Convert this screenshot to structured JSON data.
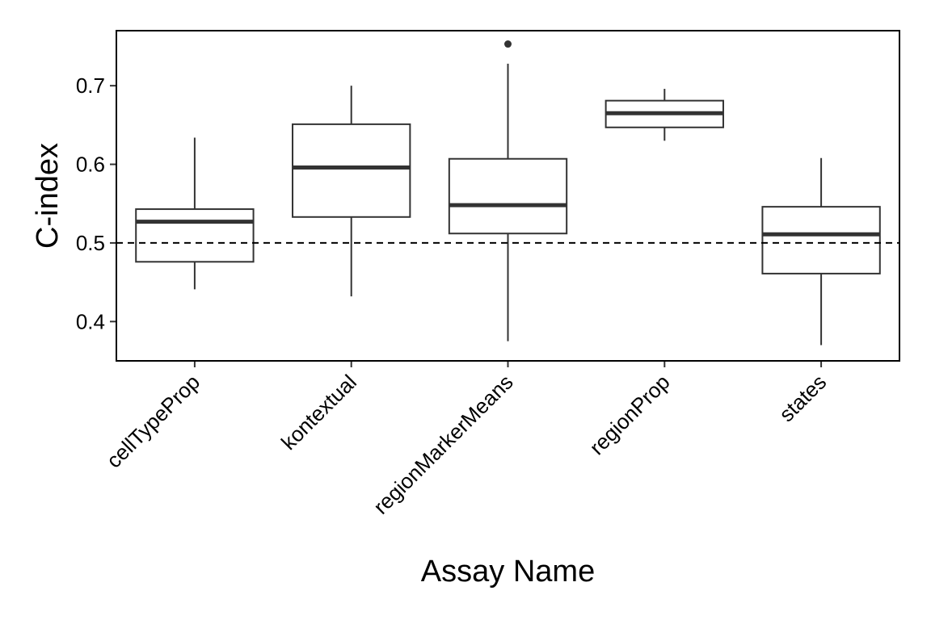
{
  "chart_data": {
    "type": "box",
    "xlabel": "Assay Name",
    "ylabel": "C-index",
    "ylim": [
      0.35,
      0.77
    ],
    "yticks": [
      0.4,
      0.5,
      0.6,
      0.7
    ],
    "ytick_labels": [
      "0.4",
      "0.5",
      "0.6",
      "0.7"
    ],
    "reference_line": {
      "y": 0.5,
      "style": "dashed"
    },
    "grid": false,
    "legend": "none",
    "categories": [
      "cellTypeProp",
      "kontextual",
      "regionMarkerMeans",
      "regionProp",
      "states"
    ],
    "boxes": [
      {
        "category": "cellTypeProp",
        "whisker_low": 0.441,
        "q1": 0.476,
        "median": 0.527,
        "q3": 0.543,
        "whisker_high": 0.634,
        "outliers": []
      },
      {
        "category": "kontextual",
        "whisker_low": 0.432,
        "q1": 0.533,
        "median": 0.596,
        "q3": 0.651,
        "whisker_high": 0.7,
        "outliers": []
      },
      {
        "category": "regionMarkerMeans",
        "whisker_low": 0.375,
        "q1": 0.512,
        "median": 0.548,
        "q3": 0.607,
        "whisker_high": 0.728,
        "outliers": [
          0.753
        ]
      },
      {
        "category": "regionProp",
        "whisker_low": 0.63,
        "q1": 0.647,
        "median": 0.665,
        "q3": 0.681,
        "whisker_high": 0.696,
        "outliers": []
      },
      {
        "category": "states",
        "whisker_low": 0.37,
        "q1": 0.461,
        "median": 0.511,
        "q3": 0.546,
        "whisker_high": 0.608,
        "outliers": []
      }
    ],
    "colors": {
      "box_line": "#333333",
      "median_line": "#333333",
      "reference_line": "#000000",
      "panel_border": "#000000"
    }
  }
}
